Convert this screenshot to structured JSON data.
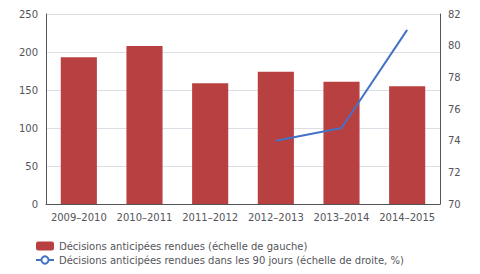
{
  "chart_data": {
    "type": "bar",
    "categories": [
      "2009–2010",
      "2010–2011",
      "2011–2012",
      "2012–2013",
      "2013–2014",
      "2014–2015"
    ],
    "series": [
      {
        "name": "Décisions anticipées rendues (échelle de gauche)",
        "type": "bar",
        "color": "#B94040",
        "values": [
          193,
          208,
          159,
          174,
          161,
          155
        ]
      },
      {
        "name": "Décisions anticipées rendues dans les 90 jours (échelle de droite, %)",
        "type": "line",
        "color": "#4472C4",
        "axis": "y2",
        "values": [
          null,
          null,
          null,
          74,
          74.8,
          81
        ]
      }
    ],
    "ylim": [
      0,
      250
    ],
    "yticks": [
      0,
      50,
      100,
      150,
      200,
      250
    ],
    "y2lim": [
      70,
      82
    ],
    "y2ticks": [
      70,
      72,
      74,
      76,
      78,
      80,
      82
    ],
    "grid": true,
    "legend": "bottom left"
  }
}
